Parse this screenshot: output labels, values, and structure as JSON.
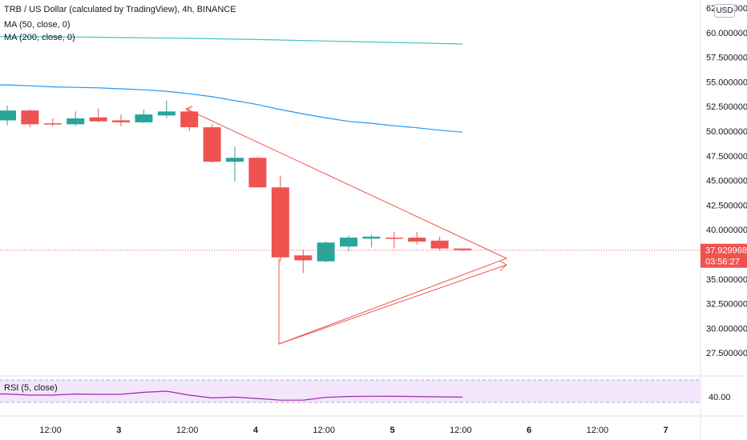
{
  "legend": {
    "title": "TRB / US Dollar (calculated by TradingView), 4h, BINANCE",
    "ma50": "MA (50, close, 0)",
    "ma200": "MA (200, close, 0)",
    "rsi": "RSI (5, close)"
  },
  "currency_button": "USD",
  "price_axis": {
    "ticks": [
      "62.500000",
      "60.000000",
      "57.500000",
      "55.000000",
      "52.500000",
      "50.000000",
      "47.500000",
      "45.000000",
      "42.500000",
      "40.000000",
      "35.000000",
      "32.500000",
      "30.000000",
      "27.500000"
    ],
    "last_price": "37.929968",
    "countdown": "03:56:27"
  },
  "rsi_axis": {
    "tick": "40.00"
  },
  "time_axis": {
    "ticks": [
      "12:00",
      "3",
      "12:00",
      "4",
      "12:00",
      "5",
      "12:00",
      "6",
      "12:00",
      "7"
    ]
  },
  "colors": {
    "up": "#26a69a",
    "down": "#ef5350",
    "ma50": "#2196f3",
    "ma200": "#40c4c4",
    "rsi_line": "#9c27b0",
    "rsi_band": "#f3e5fb",
    "last_price_label": "#ef5350",
    "pattern": "#ef5350"
  },
  "chart_data": {
    "type": "candlestick",
    "title": "TRB / US Dollar (calculated by TradingView), 4h, BINANCE",
    "interval": "4h",
    "x_ticks": [
      "12:00",
      "3",
      "12:00",
      "4",
      "12:00",
      "5",
      "12:00",
      "6",
      "12:00",
      "7"
    ],
    "ylim": [
      25.5,
      63.5
    ],
    "candles": [
      {
        "o": 51.1,
        "h": 52.6,
        "l": 50.6,
        "c": 52.1
      },
      {
        "o": 52.1,
        "h": 52.2,
        "l": 50.4,
        "c": 50.7
      },
      {
        "o": 50.8,
        "h": 51.3,
        "l": 50.5,
        "c": 50.7
      },
      {
        "o": 50.7,
        "h": 52.0,
        "l": 50.5,
        "c": 51.3
      },
      {
        "o": 51.4,
        "h": 52.3,
        "l": 50.9,
        "c": 51.0
      },
      {
        "o": 51.1,
        "h": 51.7,
        "l": 50.5,
        "c": 50.9
      },
      {
        "o": 50.9,
        "h": 52.2,
        "l": 50.8,
        "c": 51.7
      },
      {
        "o": 51.6,
        "h": 53.1,
        "l": 51.3,
        "c": 52.0
      },
      {
        "o": 52.0,
        "h": 52.4,
        "l": 50.0,
        "c": 50.4
      },
      {
        "o": 50.4,
        "h": 50.7,
        "l": 46.8,
        "c": 46.9
      },
      {
        "o": 46.9,
        "h": 48.4,
        "l": 44.9,
        "c": 47.3
      },
      {
        "o": 47.3,
        "h": 47.4,
        "l": 44.3,
        "c": 44.3
      },
      {
        "o": 44.3,
        "h": 45.5,
        "l": 36.8,
        "c": 37.2
      },
      {
        "o": 37.4,
        "h": 38.0,
        "l": 35.6,
        "c": 36.9
      },
      {
        "o": 36.8,
        "h": 38.8,
        "l": 36.7,
        "c": 38.7
      },
      {
        "o": 38.3,
        "h": 39.4,
        "l": 37.8,
        "c": 39.2
      },
      {
        "o": 39.1,
        "h": 39.5,
        "l": 38.2,
        "c": 39.3
      },
      {
        "o": 39.2,
        "h": 39.8,
        "l": 38.1,
        "c": 39.1
      },
      {
        "o": 39.2,
        "h": 39.8,
        "l": 38.5,
        "c": 38.8
      },
      {
        "o": 38.9,
        "h": 39.3,
        "l": 37.9,
        "c": 38.1
      },
      {
        "o": 38.1,
        "h": 38.1,
        "l": 37.8,
        "c": 37.93
      }
    ],
    "ma50": [
      54.7,
      54.6,
      54.5,
      54.45,
      54.4,
      54.3,
      54.2,
      54.05,
      53.8,
      53.5,
      53.1,
      52.7,
      52.2,
      51.75,
      51.35,
      51.0,
      50.8,
      50.55,
      50.35,
      50.1,
      49.9
    ],
    "ma200": [
      59.6,
      59.58,
      59.57,
      59.55,
      59.53,
      59.5,
      59.48,
      59.45,
      59.42,
      59.38,
      59.34,
      59.3,
      59.25,
      59.2,
      59.15,
      59.1,
      59.05,
      59.0,
      58.95,
      58.9,
      58.85
    ],
    "rsi": [
      45,
      43,
      43,
      45,
      44.5,
      44.5,
      48,
      50,
      43,
      38,
      39.5,
      37,
      34,
      34,
      39,
      40.5,
      41,
      40.8,
      40.5,
      39.8,
      39.5
    ],
    "rsi_band": [
      30,
      70
    ],
    "last_price": 37.929968
  }
}
